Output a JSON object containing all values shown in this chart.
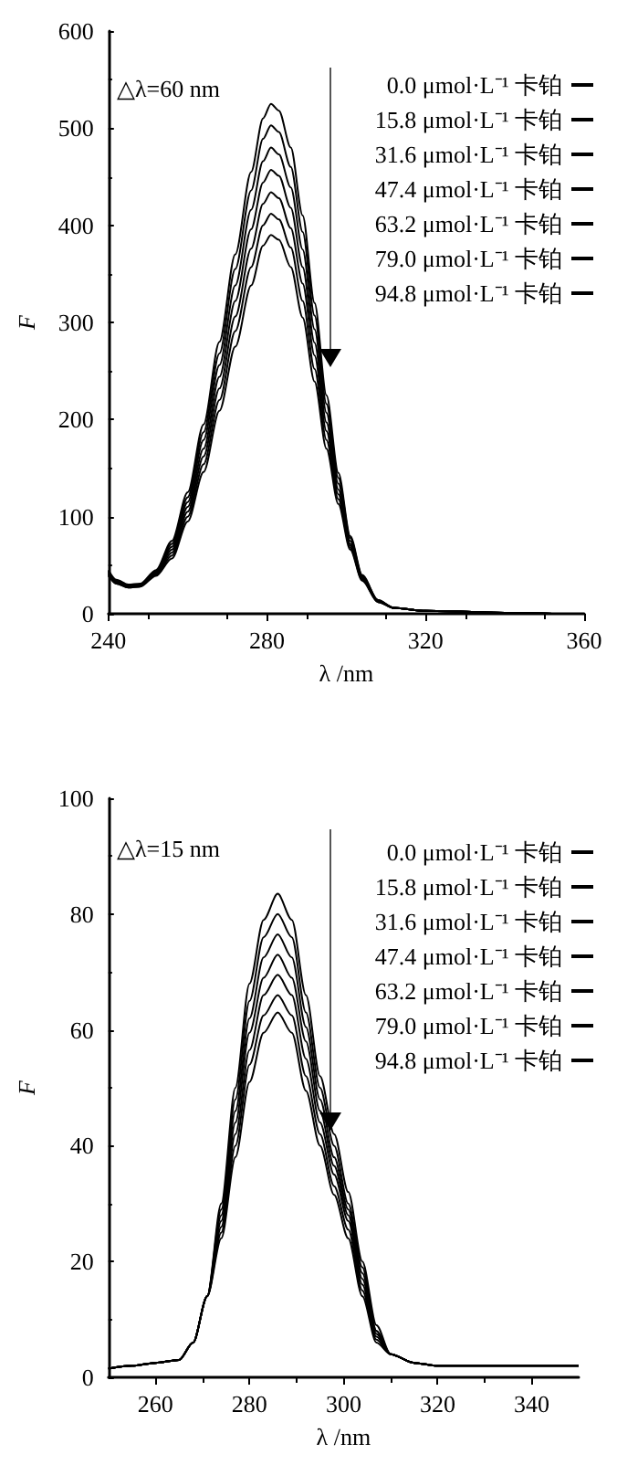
{
  "chart_data": [
    {
      "type": "line",
      "xlabel": "λ /nm",
      "ylabel": "F",
      "annotations": [
        "△λ=60 nm"
      ],
      "xlim": [
        240,
        360
      ],
      "xticks": [
        240,
        280,
        320,
        360
      ],
      "ylim": [
        0,
        600
      ],
      "yticks": [
        0,
        100,
        200,
        300,
        400,
        500,
        600
      ],
      "grid": false,
      "legend": "top right",
      "marker": "none",
      "line_style": "solid",
      "x": [
        240,
        242,
        245,
        248,
        252,
        256,
        260,
        264,
        268,
        272,
        276,
        279,
        281,
        283,
        286,
        289,
        292,
        295,
        298,
        301,
        304,
        308,
        312,
        320,
        340,
        352
      ],
      "series": [
        {
          "name": "0.0 μmol·L⁻¹ 卡铂",
          "color": "#000000",
          "values": [
            45,
            35,
            30,
            31,
            45,
            75,
            125,
            195,
            280,
            370,
            455,
            510,
            525,
            518,
            480,
            410,
            320,
            225,
            145,
            80,
            40,
            14,
            6,
            3,
            1,
            0
          ]
        },
        {
          "name": "15.8 μmol·L⁻¹ 卡铂",
          "color": "#000000",
          "values": [
            44,
            34,
            29,
            30,
            44,
            72,
            120,
            187,
            268,
            355,
            436,
            489,
            503,
            496,
            460,
            393,
            307,
            216,
            140,
            78,
            39,
            14,
            6,
            3,
            1,
            0
          ]
        },
        {
          "name": "31.6 μmol·L⁻¹ 卡铂",
          "color": "#000000",
          "values": [
            43,
            33,
            29,
            30,
            43,
            69,
            115,
            179,
            256,
            338,
            416,
            466,
            480,
            473,
            439,
            375,
            293,
            207,
            134,
            75,
            38,
            13,
            6,
            3,
            1,
            0
          ]
        },
        {
          "name": "47.4 μmol·L⁻¹ 卡铂",
          "color": "#000000",
          "values": [
            42,
            33,
            28,
            29,
            42,
            66,
            110,
            170,
            244,
            322,
            396,
            444,
            457,
            451,
            418,
            357,
            279,
            197,
            128,
            72,
            37,
            13,
            6,
            3,
            1,
            0
          ]
        },
        {
          "name": "63.2 μmol·L⁻¹ 卡铂",
          "color": "#000000",
          "values": [
            41,
            32,
            28,
            29,
            41,
            63,
            105,
            162,
            232,
            306,
            376,
            422,
            434,
            428,
            397,
            340,
            266,
            188,
            123,
            70,
            36,
            13,
            6,
            3,
            1,
            0
          ]
        },
        {
          "name": "79.0 μmol·L⁻¹ 卡铂",
          "color": "#000000",
          "values": [
            40,
            31,
            27,
            28,
            40,
            60,
            100,
            154,
            220,
            291,
            357,
            400,
            412,
            406,
            377,
            322,
            252,
            179,
            118,
            68,
            35,
            12,
            6,
            3,
            1,
            0
          ]
        },
        {
          "name": "94.8 μmol·L⁻¹ 卡铂",
          "color": "#000000",
          "values": [
            39,
            31,
            27,
            28,
            39,
            57,
            95,
            146,
            209,
            275,
            338,
            379,
            390,
            385,
            357,
            305,
            239,
            170,
            113,
            66,
            34,
            12,
            6,
            3,
            1,
            0
          ]
        }
      ]
    },
    {
      "type": "line",
      "xlabel": "λ /nm",
      "ylabel": "F",
      "annotations": [
        "△λ=15 nm"
      ],
      "xlim": [
        250,
        350
      ],
      "xticks": [
        260,
        280,
        300,
        320,
        340
      ],
      "ylim": [
        0,
        100
      ],
      "yticks": [
        0,
        20,
        40,
        60,
        80,
        100
      ],
      "grid": false,
      "legend": "top right",
      "marker": "none",
      "line_style": "solid",
      "x": [
        250,
        255,
        260,
        265,
        268,
        271,
        274,
        277,
        280,
        283,
        286,
        289,
        292,
        295,
        298,
        301,
        304,
        307,
        310,
        315,
        320,
        330,
        340,
        350
      ],
      "series": [
        {
          "name": "0.0 μmol·L⁻¹ 卡铂",
          "color": "#000000",
          "values": [
            1.5,
            2,
            2.5,
            3,
            6,
            14,
            30,
            50,
            68,
            79,
            83.5,
            79,
            66,
            52,
            42,
            32,
            20,
            9,
            4,
            2.5,
            2,
            2,
            2,
            2
          ]
        },
        {
          "name": "15.8 μmol·L⁻¹ 卡铂",
          "color": "#000000",
          "values": [
            1.5,
            2,
            2.5,
            3,
            6,
            14,
            29,
            48,
            65,
            76,
            80,
            76,
            63,
            50,
            40,
            30,
            19,
            8,
            4,
            2.5,
            2,
            2,
            2,
            2
          ]
        },
        {
          "name": "31.6 μmol·L⁻¹ 卡铂",
          "color": "#000000",
          "values": [
            1.5,
            2,
            2.5,
            3,
            6,
            14,
            28,
            46,
            62,
            72.5,
            76.5,
            72.5,
            60.5,
            48,
            38,
            29,
            18,
            8,
            4,
            2.5,
            2,
            2,
            2,
            2
          ]
        },
        {
          "name": "47.4 μmol·L⁻¹ 卡铂",
          "color": "#000000",
          "values": [
            1.5,
            2,
            2.5,
            3,
            6,
            14,
            27,
            44,
            59.5,
            69,
            73,
            69,
            58,
            46,
            36.5,
            28,
            17,
            7.5,
            4,
            2.5,
            2,
            2,
            2,
            2
          ]
        },
        {
          "name": "63.2 μmol·L⁻¹ 卡铂",
          "color": "#000000",
          "values": [
            1.5,
            2,
            2.5,
            3,
            6,
            14,
            26,
            42,
            56.5,
            66,
            69.5,
            66,
            55,
            44,
            35,
            27,
            16,
            7,
            4,
            2.5,
            2,
            2,
            2,
            2
          ]
        },
        {
          "name": "79.0 μmol·L⁻¹ 卡铂",
          "color": "#000000",
          "values": [
            1.5,
            2,
            2.5,
            3,
            6,
            14,
            25,
            40,
            54,
            62.5,
            66,
            62.5,
            52,
            42,
            33,
            25.5,
            15,
            6.5,
            4,
            2.5,
            2,
            2,
            2,
            2
          ]
        },
        {
          "name": "94.8 μmol·L⁻¹ 卡铂",
          "color": "#000000",
          "values": [
            1.5,
            2,
            2.5,
            3,
            6,
            14,
            24,
            38,
            51,
            59.5,
            63,
            59.5,
            49.5,
            40,
            31.5,
            24,
            14,
            6,
            4,
            2.5,
            2,
            2,
            2,
            2
          ]
        }
      ]
    }
  ]
}
